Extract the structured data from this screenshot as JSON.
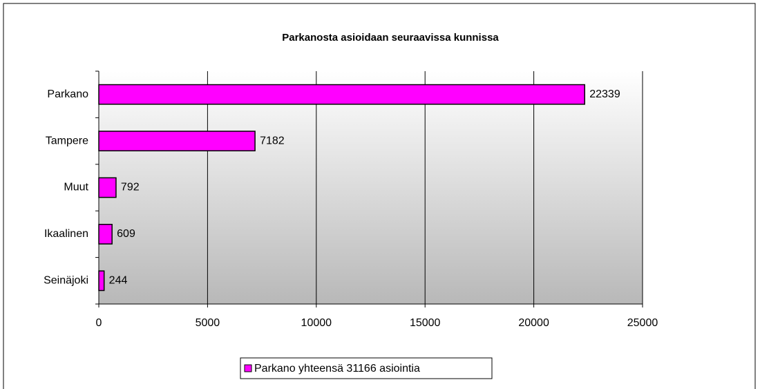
{
  "chart_data": {
    "type": "bar",
    "orientation": "horizontal",
    "title": "Parkanosta asioidaan seuraavissa kunnissa",
    "categories": [
      "Parkano",
      "Tampere",
      "Muut",
      "Ikaalinen",
      "Seinäjoki"
    ],
    "series": [
      {
        "name": "Parkano yhteensä 31166 asiointia",
        "color": "#ff00ff",
        "values": [
          22339,
          7182,
          792,
          609,
          244
        ]
      }
    ],
    "xlim": [
      0,
      25000
    ],
    "xticks": [
      0,
      5000,
      10000,
      15000,
      20000,
      25000
    ],
    "grid": true,
    "legend": "bottom"
  }
}
